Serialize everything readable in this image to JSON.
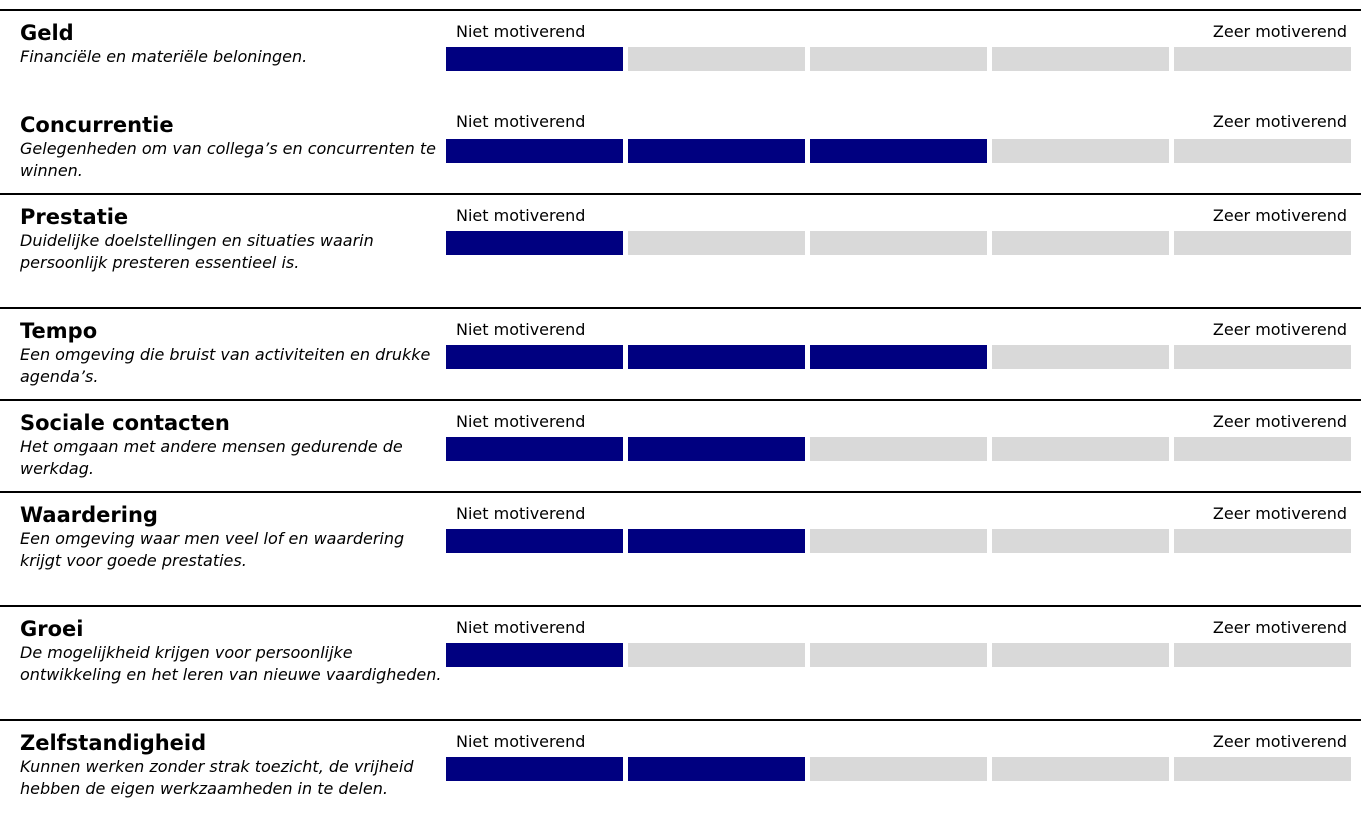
{
  "scale": {
    "low_label": "Niet motiverend",
    "high_label": "Zeer motiverend",
    "max": 5,
    "fill_color": "#000080",
    "empty_color": "#d9d9d9"
  },
  "items": [
    {
      "title": "Geld",
      "description": "Financiële en materiële beloningen.",
      "score": 1
    },
    {
      "title": "Concurrentie",
      "description": "Gelegenheden om van collega’s en concurrenten te winnen.",
      "score": 3
    },
    {
      "title": "Prestatie",
      "description": "Duidelijke doelstellingen en situaties waarin persoonlijk presteren essentieel is.",
      "score": 1
    },
    {
      "title": "Tempo",
      "description": "Een omgeving die bruist van activiteiten en drukke agenda’s.",
      "score": 3
    },
    {
      "title": "Sociale contacten",
      "description": "Het omgaan met andere mensen gedurende de werkdag.",
      "score": 2
    },
    {
      "title": "Waardering",
      "description": "Een omgeving waar men veel lof en waardering krijgt voor goede prestaties.",
      "score": 2
    },
    {
      "title": "Groei",
      "description": "De mogelijkheid krijgen voor persoonlijke ontwikkeling en het leren van nieuwe vaardigheden.",
      "score": 1
    },
    {
      "title": "Zelfstandigheid",
      "description": "Kunnen werken zonder strak toezicht, de vrijheid hebben de eigen werkzaamheden in te delen.",
      "score": 2
    }
  ]
}
